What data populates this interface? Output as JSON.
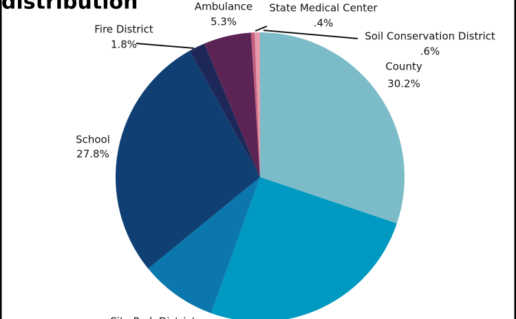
{
  "chart_data": {
    "type": "pie",
    "title": "distribution",
    "categories": [
      "County",
      null,
      "City Park District",
      "School",
      "Fire District",
      "Ambulance",
      "State Medical Center",
      "Soil Conservation District"
    ],
    "values": [
      30.2,
      25.3,
      8.6,
      27.8,
      1.8,
      5.3,
      0.4,
      0.6
    ],
    "value_labels": [
      "30.2%",
      null,
      null,
      "27.8%",
      "1.8%",
      "5.3%",
      ".4%",
      ".6%"
    ],
    "colors": [
      "#7bbcc8",
      "#0099c2",
      "#0b77ac",
      "#103f73",
      "#1d2859",
      "#5b2454",
      "#c4607e",
      "#e59aaa"
    ]
  }
}
